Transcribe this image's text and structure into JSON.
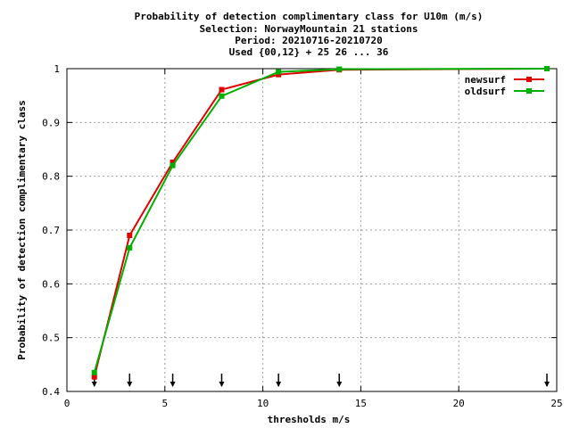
{
  "chart_data": {
    "type": "line",
    "title_lines": [
      "Probability of detection complimentary class  for U10m (m/s)",
      "Selection: NorwayMountain     21 stations",
      "Period: 20210716-20210720",
      "Used {00,12} + 25 26 ... 36"
    ],
    "xlabel": "thresholds m/s",
    "ylabel": "Probability of detection complimentary class",
    "xlim": [
      0,
      25
    ],
    "ylim": [
      0.4,
      1.0
    ],
    "x_ticks": [
      0,
      5,
      10,
      15,
      20,
      25
    ],
    "y_ticks": [
      0.4,
      0.5,
      0.6,
      0.7,
      0.8,
      0.9,
      1.0
    ],
    "x_tick_labels": [
      "0",
      "5",
      "10",
      "15",
      "20",
      "25"
    ],
    "y_tick_labels": [
      "0.4",
      "0.5",
      "0.6",
      "0.7",
      "0.8",
      "0.9",
      "1"
    ],
    "grid": true,
    "legend_position": "top-right",
    "threshold_arrows": [
      1.4,
      3.2,
      5.4,
      7.9,
      10.8,
      13.9,
      24.5
    ],
    "series": [
      {
        "name": "newsurf",
        "color": "#e00000",
        "x": [
          1.4,
          3.2,
          5.4,
          7.9,
          10.8,
          13.9,
          24.5
        ],
        "y": [
          0.427,
          0.69,
          0.826,
          0.961,
          0.989,
          0.998,
          1.0
        ]
      },
      {
        "name": "oldsurf",
        "color": "#00b000",
        "x": [
          1.4,
          3.2,
          5.4,
          7.9,
          10.8,
          13.9,
          24.5
        ],
        "y": [
          0.435,
          0.667,
          0.82,
          0.949,
          0.994,
          0.999,
          1.0
        ]
      }
    ]
  }
}
